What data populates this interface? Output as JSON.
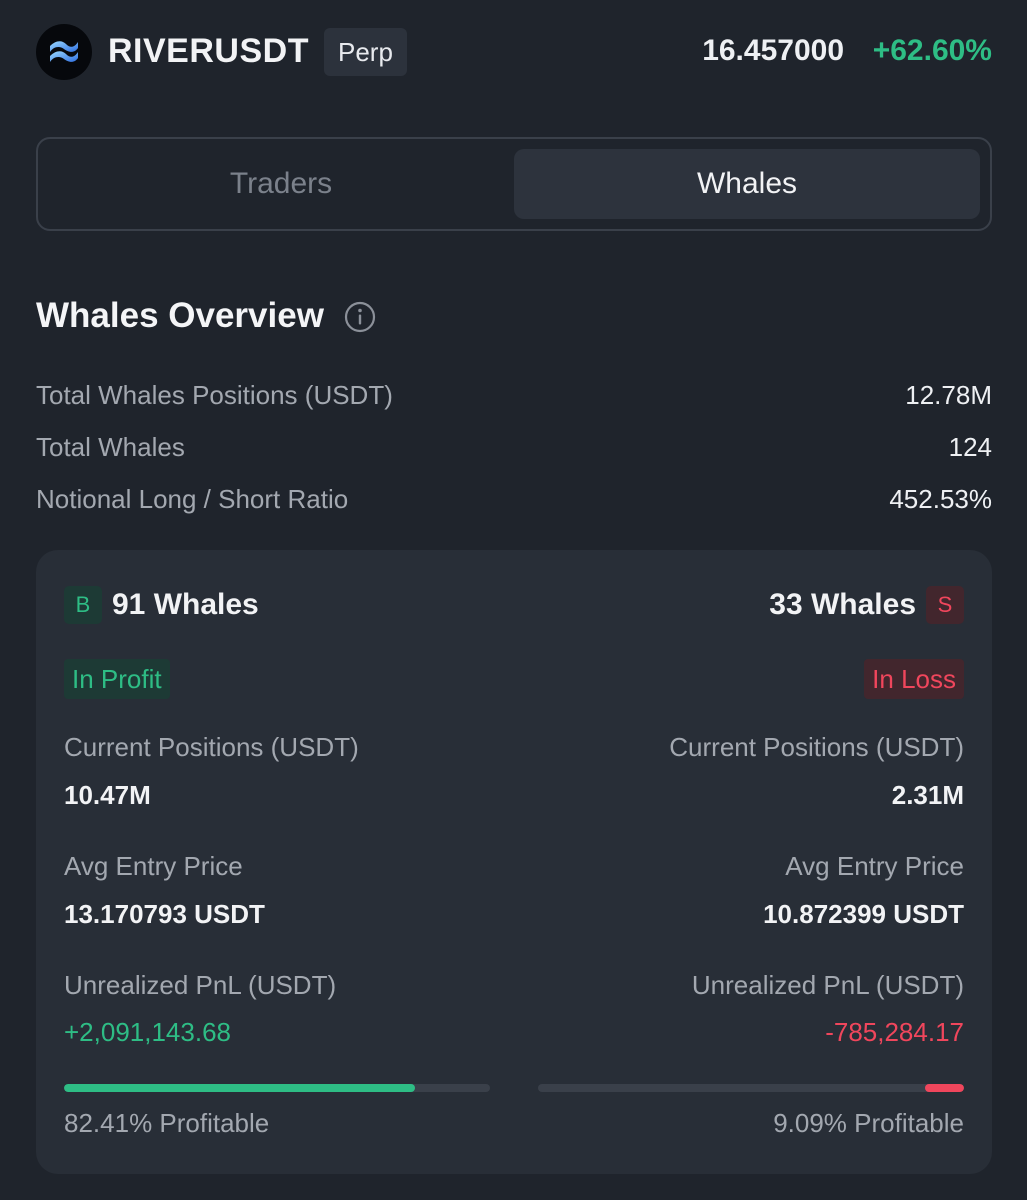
{
  "header": {
    "symbol": "RIVERUSDT",
    "contract_type": "Perp",
    "price": "16.457000",
    "change": "+62.60%",
    "logo_icon": "river-wave-logo-icon"
  },
  "tabs": [
    {
      "label": "Traders",
      "active": false
    },
    {
      "label": "Whales",
      "active": true
    }
  ],
  "overview": {
    "title": "Whales Overview",
    "info_icon": "info-icon",
    "stats": [
      {
        "label": "Total Whales Positions (USDT)",
        "value": "12.78M"
      },
      {
        "label": "Total Whales",
        "value": "124"
      },
      {
        "label": "Notional Long / Short Ratio",
        "value": "452.53%"
      }
    ]
  },
  "long": {
    "badge": "B",
    "count": "91 Whales",
    "status": "In Profit",
    "positions_label": "Current Positions (USDT)",
    "positions_value": "10.47M",
    "entry_label": "Avg Entry Price",
    "entry_value": "13.170793 USDT",
    "pnl_label": "Unrealized PnL (USDT)",
    "pnl_value": "+2,091,143.68",
    "profitable_fraction": 0.8241,
    "profitable_text": "82.41% Profitable"
  },
  "short": {
    "badge": "S",
    "count": "33 Whales",
    "status": "In Loss",
    "positions_label": "Current Positions (USDT)",
    "positions_value": "2.31M",
    "entry_label": "Avg Entry Price",
    "entry_value": "10.872399 USDT",
    "pnl_label": "Unrealized PnL (USDT)",
    "pnl_value": "-785,284.17",
    "profitable_fraction": 0.0909,
    "profitable_text": "9.09% Profitable"
  },
  "colors": {
    "background": "#1f242c",
    "card": "#282e37",
    "positive": "#2ebd85",
    "negative": "#f0465c"
  }
}
